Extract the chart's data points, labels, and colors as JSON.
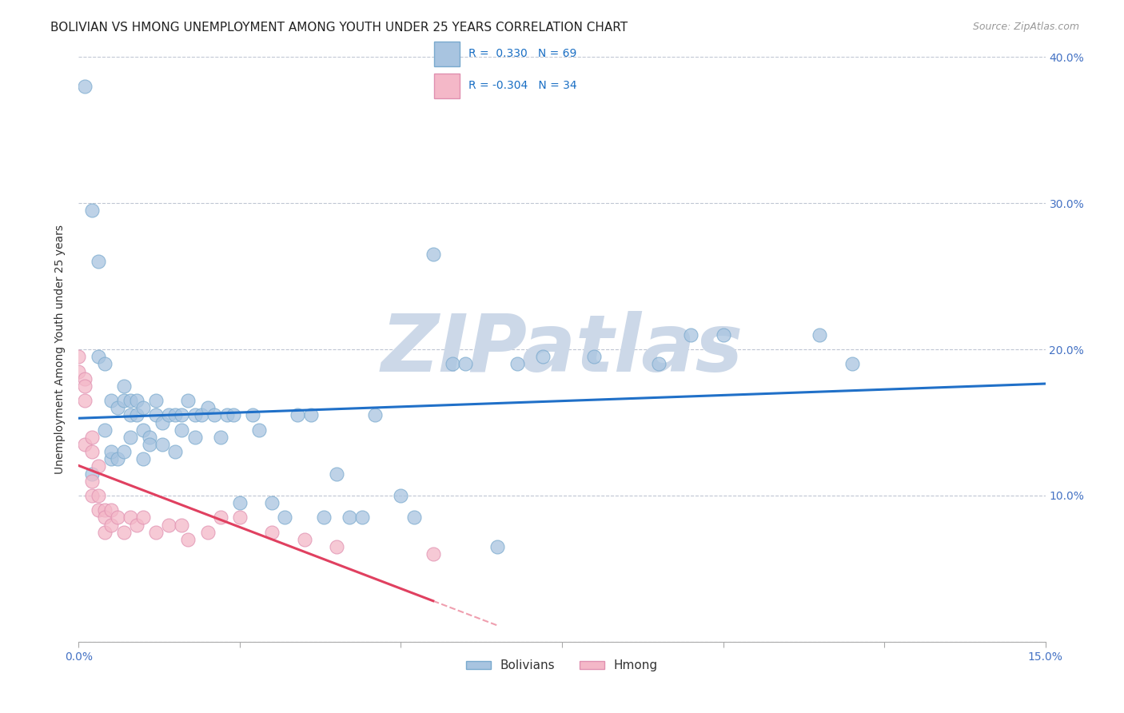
{
  "title": "BOLIVIAN VS HMONG UNEMPLOYMENT AMONG YOUTH UNDER 25 YEARS CORRELATION CHART",
  "source": "Source: ZipAtlas.com",
  "ylabel": "Unemployment Among Youth under 25 years",
  "xlim": [
    0.0,
    0.15
  ],
  "ylim": [
    0.0,
    0.4
  ],
  "xticks": [
    0.0,
    0.025,
    0.05,
    0.075,
    0.1,
    0.125,
    0.15
  ],
  "yticks": [
    0.0,
    0.1,
    0.2,
    0.3,
    0.4
  ],
  "right_ytick_labels": [
    "",
    "10.0%",
    "20.0%",
    "30.0%",
    "40.0%"
  ],
  "bolivian_color": "#a8c4e0",
  "hmong_color": "#f4b8c8",
  "trend_bolivian_color": "#2070c8",
  "trend_hmong_color": "#e04060",
  "R_bolivian": 0.33,
  "N_bolivian": 69,
  "R_hmong": -0.304,
  "N_hmong": 34,
  "bolivians_x": [
    0.001,
    0.002,
    0.002,
    0.003,
    0.003,
    0.004,
    0.004,
    0.005,
    0.005,
    0.005,
    0.006,
    0.006,
    0.007,
    0.007,
    0.007,
    0.008,
    0.008,
    0.008,
    0.009,
    0.009,
    0.01,
    0.01,
    0.01,
    0.011,
    0.011,
    0.012,
    0.012,
    0.013,
    0.013,
    0.014,
    0.015,
    0.015,
    0.016,
    0.016,
    0.017,
    0.018,
    0.018,
    0.019,
    0.02,
    0.021,
    0.022,
    0.023,
    0.024,
    0.025,
    0.027,
    0.028,
    0.03,
    0.032,
    0.034,
    0.036,
    0.038,
    0.04,
    0.042,
    0.044,
    0.046,
    0.05,
    0.052,
    0.055,
    0.058,
    0.06,
    0.065,
    0.068,
    0.072,
    0.08,
    0.09,
    0.095,
    0.1,
    0.115,
    0.12
  ],
  "bolivians_y": [
    0.38,
    0.115,
    0.295,
    0.26,
    0.195,
    0.19,
    0.145,
    0.125,
    0.13,
    0.165,
    0.125,
    0.16,
    0.175,
    0.165,
    0.13,
    0.165,
    0.155,
    0.14,
    0.165,
    0.155,
    0.145,
    0.16,
    0.125,
    0.14,
    0.135,
    0.165,
    0.155,
    0.15,
    0.135,
    0.155,
    0.13,
    0.155,
    0.155,
    0.145,
    0.165,
    0.155,
    0.14,
    0.155,
    0.16,
    0.155,
    0.14,
    0.155,
    0.155,
    0.095,
    0.155,
    0.145,
    0.095,
    0.085,
    0.155,
    0.155,
    0.085,
    0.115,
    0.085,
    0.085,
    0.155,
    0.1,
    0.085,
    0.265,
    0.19,
    0.19,
    0.065,
    0.19,
    0.195,
    0.195,
    0.19,
    0.21,
    0.21,
    0.21,
    0.19
  ],
  "hmong_x": [
    0.0,
    0.0,
    0.001,
    0.001,
    0.001,
    0.001,
    0.002,
    0.002,
    0.002,
    0.002,
    0.003,
    0.003,
    0.003,
    0.004,
    0.004,
    0.004,
    0.005,
    0.005,
    0.006,
    0.007,
    0.008,
    0.009,
    0.01,
    0.012,
    0.014,
    0.016,
    0.017,
    0.02,
    0.022,
    0.025,
    0.03,
    0.035,
    0.04,
    0.055
  ],
  "hmong_y": [
    0.195,
    0.185,
    0.18,
    0.175,
    0.165,
    0.135,
    0.14,
    0.13,
    0.11,
    0.1,
    0.12,
    0.1,
    0.09,
    0.09,
    0.085,
    0.075,
    0.09,
    0.08,
    0.085,
    0.075,
    0.085,
    0.08,
    0.085,
    0.075,
    0.08,
    0.08,
    0.07,
    0.075,
    0.085,
    0.085,
    0.075,
    0.07,
    0.065,
    0.06
  ],
  "background_color": "#ffffff",
  "grid_color": "#b0b8c8",
  "title_fontsize": 11,
  "axis_label_fontsize": 10,
  "tick_fontsize": 10,
  "watermark_text": "ZIPatlas",
  "watermark_color": "#ccd8e8",
  "watermark_fontsize": 72
}
